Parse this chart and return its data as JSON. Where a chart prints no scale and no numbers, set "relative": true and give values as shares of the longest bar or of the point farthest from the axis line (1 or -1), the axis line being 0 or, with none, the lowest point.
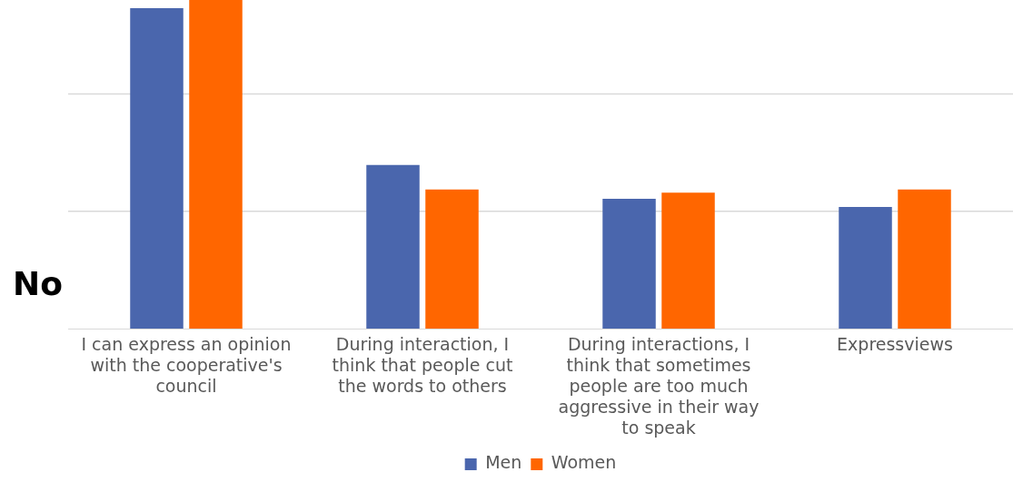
{
  "chart_data": {
    "type": "bar",
    "relative": true,
    "categories": [
      "I can express an opinion with the cooperative's council",
      "During interaction, I think that people cut the words to others",
      "During interactions, I think that sometimes people are too much aggressive in their way to speak",
      "Expressviews"
    ],
    "series": [
      {
        "name": "Men",
        "color": "#4a66ad",
        "values": [
          0.975,
          0.498,
          0.395,
          0.37
        ]
      },
      {
        "name": "Women",
        "color": "#ff6600",
        "values": [
          1,
          0.423,
          0.414,
          0.423
        ]
      }
    ],
    "annotations": [
      "No"
    ],
    "ref_lines": [
      {
        "axis": "y",
        "value": 0.357,
        "color": "#d9d9d9"
      },
      {
        "axis": "y",
        "value": 0.714,
        "color": "#d9d9d9"
      }
    ],
    "legend": "bottom"
  }
}
